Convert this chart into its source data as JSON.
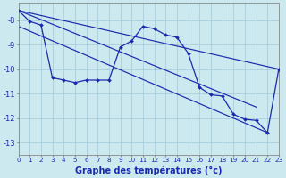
{
  "xlabel": "Graphe des températures (°c)",
  "xlim": [
    0,
    23
  ],
  "ylim": [
    -13.5,
    -7.3
  ],
  "yticks": [
    -13,
    -12,
    -11,
    -10,
    -9,
    -8
  ],
  "xticks": [
    0,
    1,
    2,
    3,
    4,
    5,
    6,
    7,
    8,
    9,
    10,
    11,
    12,
    13,
    14,
    15,
    16,
    17,
    18,
    19,
    20,
    21,
    22,
    23
  ],
  "background_color": "#cce9f0",
  "line_color": "#1a2aaa",
  "zigzag_x": [
    0,
    1,
    2,
    3,
    4,
    5,
    6,
    7,
    8,
    9,
    10,
    11,
    12,
    13,
    14,
    15,
    16,
    17,
    18,
    19,
    20,
    21,
    22,
    23
  ],
  "zigzag_y": [
    -7.6,
    -8.05,
    -8.2,
    -10.35,
    -10.45,
    -10.55,
    -10.45,
    -10.45,
    -10.45,
    -9.1,
    -8.85,
    -8.25,
    -8.35,
    -8.6,
    -8.7,
    -9.35,
    -10.75,
    -11.05,
    -11.1,
    -11.85,
    -12.05,
    -12.1,
    -12.6,
    -10.0
  ],
  "trend1_x": [
    0,
    21
  ],
  "trend1_y": [
    -7.6,
    -11.55
  ],
  "trend2_x": [
    0,
    22
  ],
  "trend2_y": [
    -8.25,
    -12.6
  ],
  "trend3_x": [
    0,
    23
  ],
  "trend3_y": [
    -7.6,
    -10.0
  ]
}
